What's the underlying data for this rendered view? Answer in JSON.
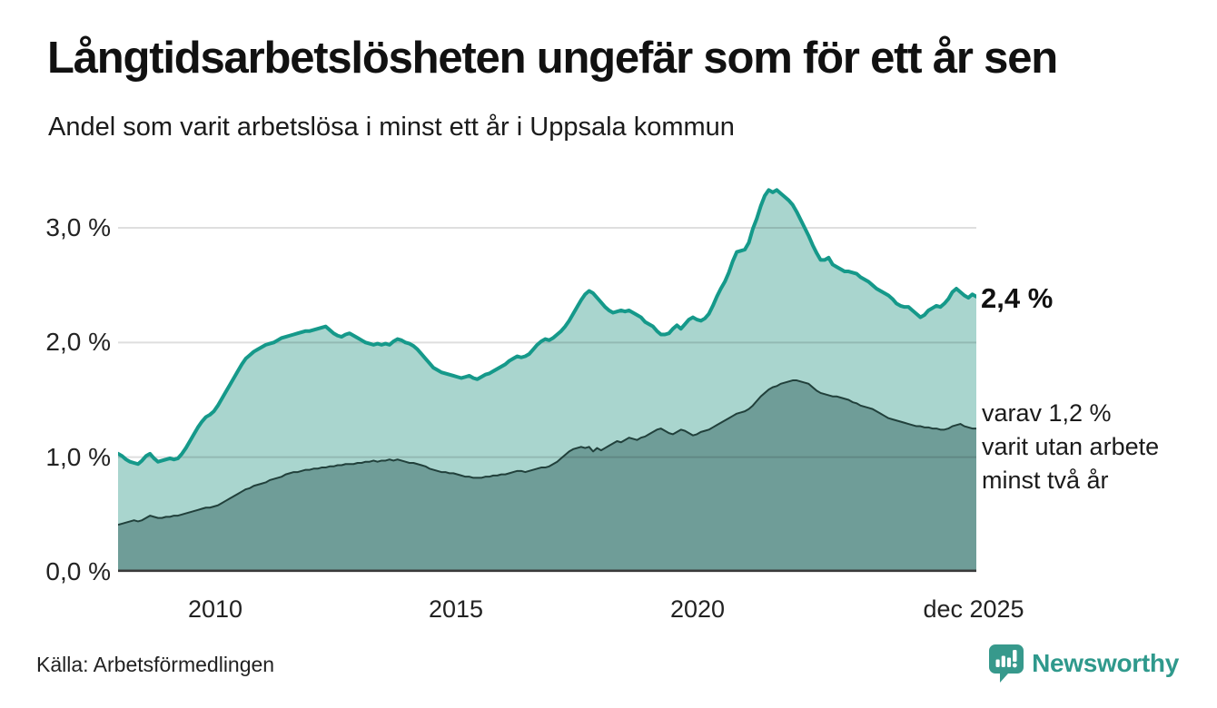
{
  "header": {
    "title": "Långtidsarbetslösheten ungefär som för ett år sen",
    "subtitle": "Andel som varit arbetslösa i minst ett år i Uppsala kommun"
  },
  "chart_data": {
    "type": "area",
    "unit": "%",
    "frequency": "monthly",
    "x_range": [
      "jan 2008",
      "dec 2025"
    ],
    "ylim": [
      0,
      3.4
    ],
    "grid": "horizontal",
    "legend_position": "none",
    "y_ticks": [
      {
        "label": "3,0 %",
        "value": 3.0
      },
      {
        "label": "2,0 %",
        "value": 2.0
      },
      {
        "label": "1,0 %",
        "value": 1.0
      },
      {
        "label": "0,0 %",
        "value": 0.0
      }
    ],
    "x_ticks": [
      {
        "label": "2010"
      },
      {
        "label": "2015"
      },
      {
        "label": "2020"
      },
      {
        "label": "dec 2025"
      }
    ],
    "series": [
      {
        "name": "arbetslösa minst ett år",
        "line_color": "#15998a",
        "fill_color": "#a9d5ce",
        "values": [
          1.03,
          1.01,
          0.98,
          0.96,
          0.95,
          0.94,
          0.97,
          1.01,
          1.03,
          0.99,
          0.96,
          0.97,
          0.98,
          0.99,
          0.98,
          0.99,
          1.03,
          1.08,
          1.14,
          1.2,
          1.26,
          1.31,
          1.35,
          1.37,
          1.4,
          1.45,
          1.51,
          1.57,
          1.63,
          1.69,
          1.75,
          1.81,
          1.86,
          1.89,
          1.92,
          1.94,
          1.96,
          1.98,
          1.99,
          2.0,
          2.02,
          2.04,
          2.05,
          2.06,
          2.07,
          2.08,
          2.09,
          2.1,
          2.1,
          2.11,
          2.12,
          2.13,
          2.14,
          2.11,
          2.08,
          2.06,
          2.05,
          2.07,
          2.08,
          2.06,
          2.04,
          2.02,
          2.0,
          1.99,
          1.98,
          1.99,
          1.98,
          1.99,
          1.98,
          2.01,
          2.03,
          2.02,
          2.0,
          1.99,
          1.97,
          1.94,
          1.9,
          1.86,
          1.82,
          1.78,
          1.76,
          1.74,
          1.73,
          1.72,
          1.71,
          1.7,
          1.69,
          1.7,
          1.71,
          1.69,
          1.68,
          1.7,
          1.72,
          1.73,
          1.75,
          1.77,
          1.79,
          1.81,
          1.84,
          1.86,
          1.88,
          1.87,
          1.88,
          1.9,
          1.94,
          1.98,
          2.01,
          2.03,
          2.02,
          2.04,
          2.07,
          2.1,
          2.14,
          2.19,
          2.25,
          2.31,
          2.37,
          2.42,
          2.45,
          2.43,
          2.39,
          2.35,
          2.31,
          2.28,
          2.26,
          2.27,
          2.28,
          2.27,
          2.28,
          2.26,
          2.24,
          2.22,
          2.18,
          2.16,
          2.14,
          2.1,
          2.07,
          2.07,
          2.08,
          2.12,
          2.15,
          2.12,
          2.16,
          2.2,
          2.22,
          2.2,
          2.19,
          2.21,
          2.25,
          2.32,
          2.4,
          2.47,
          2.53,
          2.61,
          2.71,
          2.79,
          2.8,
          2.81,
          2.87,
          2.99,
          3.08,
          3.19,
          3.28,
          3.33,
          3.31,
          3.33,
          3.3,
          3.27,
          3.24,
          3.2,
          3.14,
          3.07,
          3.0,
          2.93,
          2.85,
          2.78,
          2.72,
          2.72,
          2.74,
          2.68,
          2.66,
          2.64,
          2.62,
          2.62,
          2.61,
          2.6,
          2.57,
          2.55,
          2.53,
          2.5,
          2.47,
          2.45,
          2.43,
          2.41,
          2.38,
          2.34,
          2.32,
          2.31,
          2.31,
          2.28,
          2.25,
          2.22,
          2.24,
          2.28,
          2.3,
          2.32,
          2.31,
          2.34,
          2.38,
          2.44,
          2.47,
          2.44,
          2.41,
          2.39,
          2.42,
          2.4
        ]
      },
      {
        "name": "arbetslösa minst två år",
        "line_color": "#21403b",
        "fill_color": "#6f9d98",
        "values": [
          0.41,
          0.42,
          0.43,
          0.44,
          0.45,
          0.44,
          0.45,
          0.47,
          0.49,
          0.48,
          0.47,
          0.47,
          0.48,
          0.48,
          0.49,
          0.49,
          0.5,
          0.51,
          0.52,
          0.53,
          0.54,
          0.55,
          0.56,
          0.56,
          0.57,
          0.58,
          0.6,
          0.62,
          0.64,
          0.66,
          0.68,
          0.7,
          0.72,
          0.73,
          0.75,
          0.76,
          0.77,
          0.78,
          0.8,
          0.81,
          0.82,
          0.83,
          0.85,
          0.86,
          0.87,
          0.87,
          0.88,
          0.89,
          0.89,
          0.9,
          0.9,
          0.91,
          0.91,
          0.92,
          0.92,
          0.93,
          0.93,
          0.94,
          0.94,
          0.94,
          0.95,
          0.95,
          0.96,
          0.96,
          0.97,
          0.96,
          0.97,
          0.97,
          0.98,
          0.97,
          0.98,
          0.97,
          0.96,
          0.95,
          0.95,
          0.94,
          0.93,
          0.92,
          0.9,
          0.89,
          0.88,
          0.87,
          0.87,
          0.86,
          0.86,
          0.85,
          0.84,
          0.83,
          0.83,
          0.82,
          0.82,
          0.82,
          0.83,
          0.83,
          0.84,
          0.84,
          0.85,
          0.85,
          0.86,
          0.87,
          0.88,
          0.88,
          0.87,
          0.88,
          0.89,
          0.9,
          0.91,
          0.91,
          0.92,
          0.94,
          0.96,
          0.99,
          1.02,
          1.05,
          1.07,
          1.08,
          1.09,
          1.08,
          1.09,
          1.05,
          1.08,
          1.06,
          1.08,
          1.1,
          1.12,
          1.14,
          1.13,
          1.15,
          1.17,
          1.16,
          1.15,
          1.17,
          1.18,
          1.2,
          1.22,
          1.24,
          1.25,
          1.23,
          1.21,
          1.2,
          1.22,
          1.24,
          1.23,
          1.21,
          1.19,
          1.2,
          1.22,
          1.23,
          1.24,
          1.26,
          1.28,
          1.3,
          1.32,
          1.34,
          1.36,
          1.38,
          1.39,
          1.4,
          1.42,
          1.45,
          1.49,
          1.53,
          1.56,
          1.59,
          1.61,
          1.62,
          1.64,
          1.65,
          1.66,
          1.67,
          1.67,
          1.66,
          1.65,
          1.64,
          1.61,
          1.58,
          1.56,
          1.55,
          1.54,
          1.53,
          1.53,
          1.52,
          1.51,
          1.5,
          1.48,
          1.47,
          1.45,
          1.44,
          1.43,
          1.42,
          1.4,
          1.38,
          1.36,
          1.34,
          1.33,
          1.32,
          1.31,
          1.3,
          1.29,
          1.28,
          1.27,
          1.27,
          1.26,
          1.26,
          1.25,
          1.25,
          1.24,
          1.24,
          1.25,
          1.27,
          1.28,
          1.29,
          1.27,
          1.26,
          1.25,
          1.25
        ]
      }
    ],
    "annotations": {
      "latest_value": "2,4 %",
      "secondary": [
        "varav 1,2 %",
        "varit utan arbete",
        "minst två år"
      ]
    },
    "colors": {
      "gridline": "rgba(0,0,0,0.13)",
      "baseline": "#3a3a3a"
    }
  },
  "footer": {
    "source": "Källa: Arbetsförmedlingen",
    "brand": "Newsworthy",
    "brand_color": "#2f998c"
  }
}
